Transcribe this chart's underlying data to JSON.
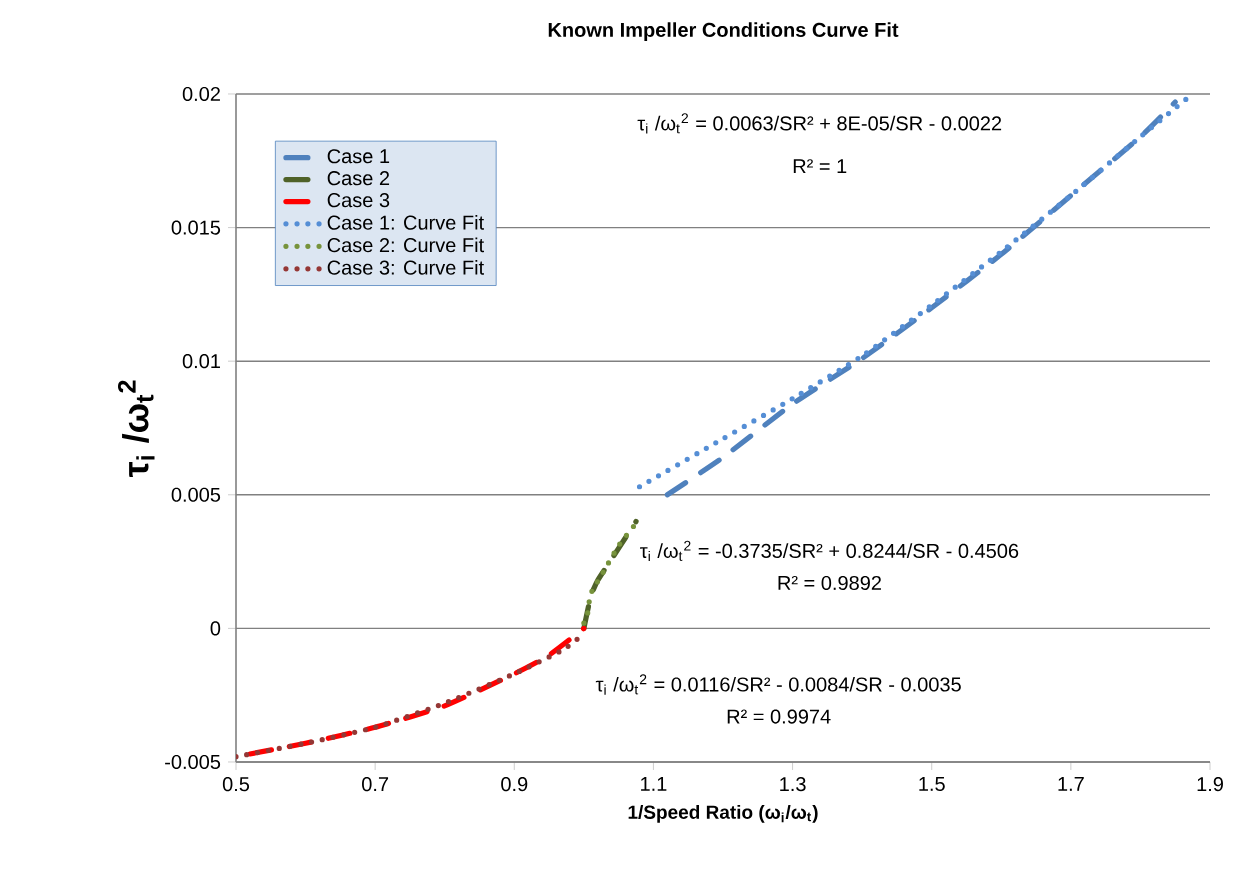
{
  "chart_data": {
    "type": "line",
    "title": "Known Impeller Conditions Curve Fit",
    "xlabel": "1/Speed Ratio (ω$_{i}$/ω$_{t}$)",
    "ylabel": "τ$_{i}$ /ω$_{t}$$^{2}$",
    "xlim": [
      0.5,
      1.9
    ],
    "xticks": [
      0.5,
      0.7,
      0.9,
      1.1,
      1.3,
      1.5,
      1.7,
      1.9
    ],
    "ylim": [
      -0.005,
      0.02
    ],
    "yticks": [
      -0.005,
      0,
      0.005,
      0.01,
      0.015,
      0.02
    ],
    "grid": "y",
    "legend": "top left",
    "marker": "none",
    "series": [
      {
        "name": "Case 1",
        "color": "#4f81bd",
        "line_style": "dashed",
        "x": [
          1.12,
          1.2,
          1.3,
          1.4,
          1.5,
          1.6,
          1.7,
          1.8,
          1.85
        ],
        "values": [
          0.005,
          0.0064,
          0.0084,
          0.0101,
          0.012,
          0.014,
          0.0162,
          0.0184,
          0.0197
        ]
      },
      {
        "name": "Case 2",
        "color": "#4f6228",
        "line_style": "dashed",
        "x": [
          1.0,
          1.01,
          1.02,
          1.04,
          1.06,
          1.075
        ],
        "values": [
          0.0,
          0.0012,
          0.0018,
          0.0026,
          0.0034,
          0.004
        ]
      },
      {
        "name": "Case 3",
        "color": "#ff0000",
        "line_style": "dashed",
        "x": [
          0.52,
          0.6,
          0.7,
          0.8,
          0.9,
          0.95,
          1.0
        ],
        "values": [
          -0.0047,
          -0.0043,
          -0.0037,
          -0.0029,
          -0.0017,
          -0.001,
          0.0
        ]
      },
      {
        "name": "Case 1: Curve Fit",
        "color": "#558ed5",
        "line_style": "dotted",
        "x": [
          1.08,
          1.2,
          1.3,
          1.4,
          1.5,
          1.6,
          1.7,
          1.8,
          1.87
        ],
        "values": [
          0.0053,
          0.0071,
          0.0086,
          0.0102,
          0.0121,
          0.0141,
          0.0162,
          0.0184,
          0.0199
        ]
      },
      {
        "name": "Case 2: Curve Fit",
        "color": "#77933c",
        "line_style": "dotted",
        "x": [
          1.0,
          1.005,
          1.01,
          1.03,
          1.05,
          1.077
        ],
        "values": [
          0.0002,
          0.0005,
          0.0013,
          0.0022,
          0.0031,
          0.004
        ]
      },
      {
        "name": "Case 3: Curve Fit",
        "color": "#953735",
        "line_style": "dotted",
        "x": [
          0.5,
          0.6,
          0.7,
          0.8,
          0.9,
          0.97,
          1.0
        ],
        "values": [
          -0.0048,
          -0.0043,
          -0.0037,
          -0.0028,
          -0.0017,
          -0.0008,
          -0.0002
        ]
      }
    ],
    "annotations": [
      "τ$_{i}$ /ω$_{t}$$^{2}$ = 0.0063/SR² + 8E-05/SR - 0.0022",
      "R² = 1",
      "τ$_{i}$ /ω$_{t}$$^{2}$ = -0.3735/SR² + 0.8244/SR - 0.4506",
      "R² = 0.9892",
      "τ$_{i}$ /ω$_{t}$$^{2}$ = 0.0116/SR² - 0.0084/SR - 0.0035",
      "R² = 0.9974"
    ]
  }
}
